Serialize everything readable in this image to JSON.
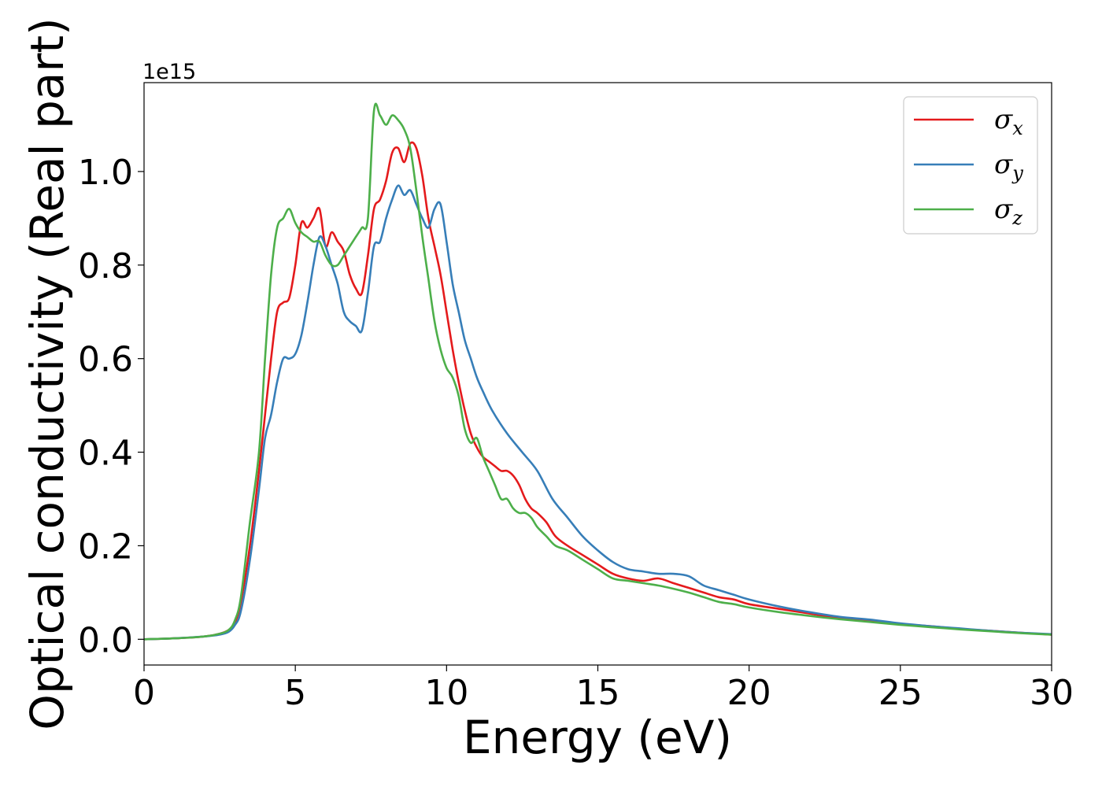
{
  "chart_data": {
    "type": "line",
    "title": "",
    "xlabel": "Energy (eV)",
    "ylabel": "Optical conductivity (Real part)",
    "y_offset_label": "1e15",
    "xlim": [
      0,
      30
    ],
    "ylim": [
      -0.055,
      1.19
    ],
    "x_ticks": [
      0,
      5,
      10,
      15,
      20,
      25,
      30
    ],
    "x_tick_labels": [
      "0",
      "5",
      "10",
      "15",
      "20",
      "25",
      "30"
    ],
    "y_ticks": [
      0.0,
      0.2,
      0.4,
      0.6,
      0.8,
      1.0
    ],
    "y_tick_labels": [
      "0.0",
      "0.2",
      "0.4",
      "0.6",
      "0.8",
      "1.0"
    ],
    "grid": false,
    "legend_position": "top-right",
    "colors": {
      "sigma_x": "#e41a1c",
      "sigma_y": "#377eb8",
      "sigma_z": "#4daf4a"
    },
    "series": [
      {
        "name": "σx",
        "symbol": "σ",
        "subscript": "x",
        "color": "#e41a1c",
        "x": [
          0,
          1,
          2,
          2.5,
          2.8,
          3.0,
          3.2,
          3.5,
          3.8,
          4.0,
          4.2,
          4.4,
          4.6,
          4.8,
          5.0,
          5.2,
          5.4,
          5.6,
          5.8,
          6.0,
          6.2,
          6.4,
          6.6,
          6.8,
          7.0,
          7.2,
          7.4,
          7.6,
          7.8,
          8.0,
          8.2,
          8.4,
          8.6,
          8.8,
          9.0,
          9.2,
          9.4,
          9.6,
          9.8,
          10.0,
          10.2,
          10.4,
          10.6,
          10.8,
          11.0,
          11.2,
          11.4,
          11.6,
          11.8,
          12.0,
          12.2,
          12.4,
          12.6,
          12.8,
          13.0,
          13.3,
          13.6,
          14.0,
          14.5,
          15.0,
          15.5,
          16.0,
          16.5,
          17.0,
          17.5,
          18.0,
          18.5,
          19.0,
          19.5,
          20.0,
          21.0,
          22.0,
          23.0,
          24.0,
          25.0,
          26.0,
          27.0,
          28.0,
          29.0,
          30.0
        ],
        "y": [
          0.0,
          0.002,
          0.006,
          0.012,
          0.02,
          0.035,
          0.08,
          0.2,
          0.36,
          0.48,
          0.6,
          0.7,
          0.72,
          0.73,
          0.8,
          0.89,
          0.88,
          0.9,
          0.92,
          0.84,
          0.87,
          0.85,
          0.83,
          0.78,
          0.75,
          0.74,
          0.82,
          0.92,
          0.94,
          0.98,
          1.04,
          1.05,
          1.02,
          1.06,
          1.05,
          0.99,
          0.9,
          0.84,
          0.78,
          0.7,
          0.62,
          0.55,
          0.49,
          0.44,
          0.41,
          0.39,
          0.38,
          0.37,
          0.36,
          0.36,
          0.35,
          0.33,
          0.3,
          0.28,
          0.27,
          0.25,
          0.22,
          0.2,
          0.18,
          0.16,
          0.14,
          0.13,
          0.125,
          0.13,
          0.12,
          0.11,
          0.1,
          0.09,
          0.085,
          0.075,
          0.065,
          0.055,
          0.045,
          0.04,
          0.033,
          0.028,
          0.022,
          0.018,
          0.014,
          0.01
        ]
      },
      {
        "name": "σy",
        "symbol": "σ",
        "subscript": "y",
        "color": "#377eb8",
        "x": [
          0,
          1,
          2,
          2.5,
          2.8,
          3.0,
          3.2,
          3.5,
          3.8,
          4.0,
          4.2,
          4.4,
          4.6,
          4.8,
          5.0,
          5.2,
          5.4,
          5.6,
          5.8,
          6.0,
          6.2,
          6.4,
          6.6,
          6.8,
          7.0,
          7.2,
          7.4,
          7.6,
          7.8,
          8.0,
          8.2,
          8.4,
          8.6,
          8.8,
          9.0,
          9.2,
          9.4,
          9.6,
          9.8,
          10.0,
          10.2,
          10.4,
          10.6,
          10.8,
          11.0,
          11.2,
          11.5,
          12.0,
          12.5,
          13.0,
          13.5,
          14.0,
          14.5,
          15.0,
          15.5,
          16.0,
          16.5,
          17.0,
          17.5,
          18.0,
          18.5,
          19.0,
          19.5,
          20.0,
          21.0,
          22.0,
          23.0,
          24.0,
          25.0,
          26.0,
          27.0,
          28.0,
          29.0,
          30.0
        ],
        "y": [
          0.0,
          0.002,
          0.006,
          0.01,
          0.016,
          0.03,
          0.06,
          0.17,
          0.32,
          0.43,
          0.48,
          0.55,
          0.6,
          0.6,
          0.61,
          0.65,
          0.72,
          0.8,
          0.86,
          0.84,
          0.8,
          0.76,
          0.7,
          0.68,
          0.67,
          0.66,
          0.74,
          0.84,
          0.85,
          0.9,
          0.94,
          0.97,
          0.95,
          0.96,
          0.93,
          0.9,
          0.88,
          0.92,
          0.93,
          0.85,
          0.76,
          0.7,
          0.64,
          0.6,
          0.56,
          0.53,
          0.49,
          0.44,
          0.4,
          0.36,
          0.3,
          0.26,
          0.22,
          0.19,
          0.165,
          0.15,
          0.145,
          0.14,
          0.14,
          0.135,
          0.115,
          0.105,
          0.095,
          0.085,
          0.07,
          0.058,
          0.048,
          0.042,
          0.034,
          0.028,
          0.023,
          0.018,
          0.014,
          0.011
        ]
      },
      {
        "name": "σz",
        "symbol": "σ",
        "subscript": "z",
        "color": "#4daf4a",
        "x": [
          0,
          1,
          2,
          2.5,
          2.8,
          3.0,
          3.2,
          3.5,
          3.8,
          4.0,
          4.2,
          4.4,
          4.6,
          4.8,
          5.0,
          5.2,
          5.4,
          5.6,
          5.8,
          6.0,
          6.2,
          6.4,
          6.6,
          6.8,
          7.0,
          7.2,
          7.4,
          7.6,
          7.8,
          8.0,
          8.2,
          8.4,
          8.6,
          8.8,
          9.0,
          9.2,
          9.4,
          9.6,
          9.8,
          10.0,
          10.2,
          10.4,
          10.6,
          10.8,
          11.0,
          11.2,
          11.4,
          11.6,
          11.8,
          12.0,
          12.2,
          12.4,
          12.6,
          12.8,
          13.0,
          13.3,
          13.6,
          14.0,
          14.5,
          15.0,
          15.5,
          16.0,
          16.5,
          17.0,
          17.5,
          18.0,
          18.5,
          19.0,
          19.5,
          20.0,
          21.0,
          22.0,
          23.0,
          24.0,
          25.0,
          26.0,
          27.0,
          28.0,
          29.0,
          30.0
        ],
        "y": [
          0.0,
          0.002,
          0.006,
          0.012,
          0.02,
          0.04,
          0.09,
          0.25,
          0.4,
          0.6,
          0.78,
          0.88,
          0.9,
          0.92,
          0.89,
          0.87,
          0.86,
          0.85,
          0.85,
          0.82,
          0.8,
          0.8,
          0.82,
          0.84,
          0.86,
          0.88,
          0.9,
          1.13,
          1.12,
          1.1,
          1.12,
          1.11,
          1.09,
          1.05,
          0.96,
          0.86,
          0.77,
          0.68,
          0.62,
          0.58,
          0.56,
          0.52,
          0.45,
          0.42,
          0.43,
          0.39,
          0.36,
          0.33,
          0.3,
          0.3,
          0.28,
          0.27,
          0.27,
          0.26,
          0.24,
          0.22,
          0.2,
          0.19,
          0.17,
          0.15,
          0.13,
          0.125,
          0.12,
          0.115,
          0.108,
          0.1,
          0.09,
          0.08,
          0.075,
          0.068,
          0.058,
          0.05,
          0.043,
          0.037,
          0.031,
          0.026,
          0.021,
          0.017,
          0.013,
          0.01
        ]
      }
    ]
  }
}
